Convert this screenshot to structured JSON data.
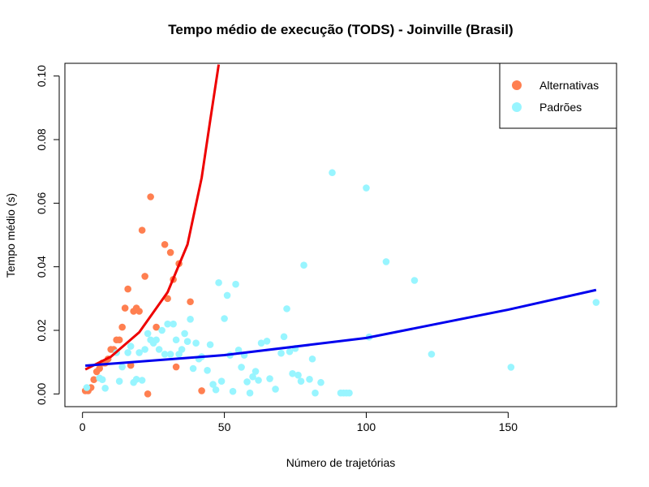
{
  "chart_data": {
    "type": "scatter",
    "title": "Tempo médio de execução (TODS) - Joinville (Brasil)",
    "x_label": "Número de trajetórias",
    "y_label": "Tempo médio (s)",
    "xlim": [
      -6.2,
      188.2
    ],
    "ylim": [
      -0.004,
      0.104
    ],
    "xticks": [
      0,
      50,
      100,
      150
    ],
    "yticks": [
      {
        "value": 0,
        "label": "0.00"
      },
      {
        "value": 0.02,
        "label": "0.02"
      },
      {
        "value": 0.04,
        "label": "0.04"
      },
      {
        "value": 0.06,
        "label": "0.06"
      },
      {
        "value": 0.08,
        "label": "0.08"
      },
      {
        "value": 0.1,
        "label": "0.10"
      }
    ],
    "legend": "top-right",
    "series": [
      {
        "name": "Alternativas",
        "color": "#ff7f50",
        "x": [
          1,
          2,
          3,
          4,
          5,
          6,
          7,
          8,
          9,
          10,
          11,
          12,
          13,
          14,
          15,
          16,
          17,
          18,
          19,
          20,
          21,
          22,
          23,
          24,
          26,
          29,
          30,
          31,
          32,
          33,
          34,
          38,
          42
        ],
        "values": [
          0.001,
          0.001,
          0.002,
          0.0045,
          0.007,
          0.008,
          0.0097,
          0.0097,
          0.011,
          0.014,
          0.014,
          0.017,
          0.017,
          0.021,
          0.027,
          0.033,
          0.009,
          0.026,
          0.027,
          0.026,
          0.0515,
          0.037,
          0.0,
          0.062,
          0.021,
          0.047,
          0.03,
          0.0445,
          0.036,
          0.0085,
          0.041,
          0.029,
          0.001
        ]
      },
      {
        "name": "Padrões",
        "color": "#98f5ff",
        "x": [
          1.5,
          6,
          7,
          8,
          12,
          13,
          14,
          16,
          17,
          18,
          19,
          20,
          21,
          22,
          23,
          24,
          25,
          26,
          27,
          28,
          29,
          30,
          31,
          32,
          33,
          34,
          35,
          36,
          37,
          38,
          39,
          40,
          41,
          42,
          44,
          45,
          46,
          47,
          48,
          49,
          50,
          51,
          52,
          53,
          54,
          55,
          56,
          57,
          58,
          59,
          60,
          61,
          62,
          63,
          65,
          66,
          68,
          70,
          71,
          72,
          73,
          74,
          75,
          76,
          77,
          78,
          80,
          81,
          82,
          84,
          88,
          91,
          92,
          93,
          94,
          100,
          101,
          107,
          117,
          123,
          151,
          181
        ],
        "values": [
          0.002,
          0.005,
          0.0045,
          0.0018,
          0.013,
          0.004,
          0.0085,
          0.013,
          0.015,
          0.0036,
          0.0046,
          0.013,
          0.0043,
          0.014,
          0.019,
          0.017,
          0.016,
          0.017,
          0.014,
          0.02,
          0.0125,
          0.022,
          0.0125,
          0.022,
          0.017,
          0.0125,
          0.014,
          0.019,
          0.0165,
          0.0235,
          0.008,
          0.016,
          0.011,
          0.0117,
          0.0074,
          0.0155,
          0.003,
          0.0013,
          0.035,
          0.004,
          0.0237,
          0.031,
          0.0122,
          0.0008,
          0.0345,
          0.0138,
          0.0084,
          0.0122,
          0.0038,
          0.0003,
          0.0054,
          0.0071,
          0.0043,
          0.016,
          0.0166,
          0.0048,
          0.0015,
          0.0128,
          0.018,
          0.0268,
          0.0133,
          0.0064,
          0.0143,
          0.0059,
          0.004,
          0.0405,
          0.0046,
          0.011,
          0.0003,
          0.0036,
          0.0696,
          0.0003,
          0.0003,
          0.0003,
          0.0003,
          0.0648,
          0.0179,
          0.0416,
          0.0357,
          0.0125,
          0.0084,
          0.0288
        ]
      }
    ],
    "lines": [
      {
        "color": "#ee0000",
        "x": [
          1,
          10,
          20,
          30,
          37,
          42,
          45,
          48
        ],
        "values": [
          0.0077,
          0.0117,
          0.0194,
          0.032,
          0.047,
          0.068,
          0.086,
          0.1036
        ]
      },
      {
        "color": "#0000ee",
        "x": [
          1,
          50,
          100,
          150,
          181
        ],
        "values": [
          0.0089,
          0.0122,
          0.0176,
          0.0265,
          0.0327
        ]
      }
    ]
  }
}
